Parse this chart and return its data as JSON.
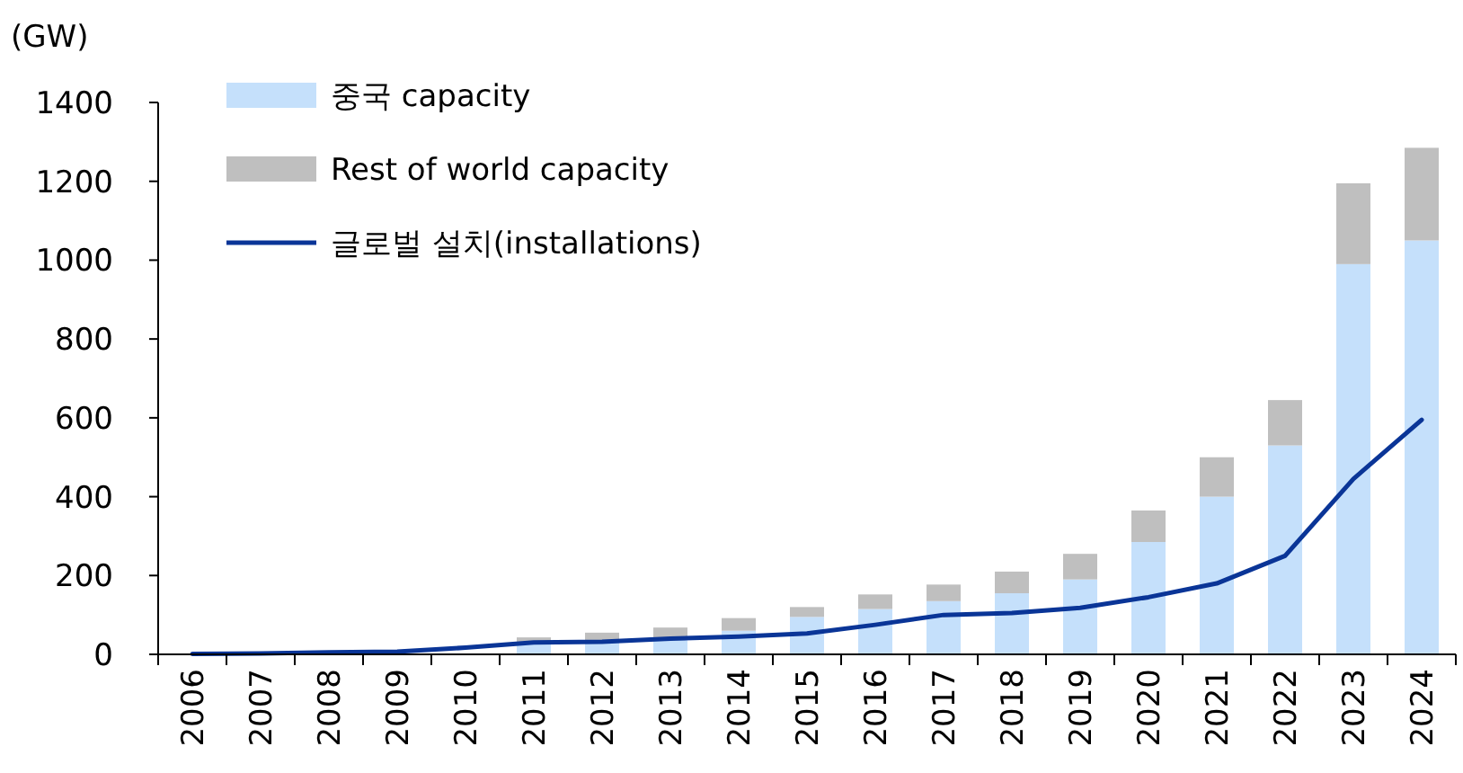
{
  "chart_data": {
    "type": "bar",
    "stacked": true,
    "ylabel": "(GW)",
    "legend": "top left",
    "categories": [
      "2006",
      "2007",
      "2008",
      "2009",
      "2010",
      "2011",
      "2012",
      "2013",
      "2014",
      "2015",
      "2016",
      "2017",
      "2018",
      "2019",
      "2020",
      "2021",
      "2022",
      "2023",
      "2024"
    ],
    "ylim": [
      0,
      1400
    ],
    "yticks": [
      0,
      200,
      400,
      600,
      800,
      1000,
      1200,
      1400
    ],
    "series": [
      {
        "name": "중국 capacity",
        "color": "#c5e0fb",
        "values": [
          null,
          null,
          null,
          null,
          null,
          25,
          30,
          42,
          60,
          95,
          115,
          135,
          155,
          190,
          285,
          400,
          530,
          990,
          1050
        ]
      },
      {
        "name": "Rest of world capacity",
        "color": "#bfbfbf",
        "values": [
          null,
          null,
          null,
          null,
          null,
          18,
          25,
          26,
          32,
          25,
          37,
          42,
          55,
          65,
          80,
          100,
          115,
          205,
          235
        ]
      },
      {
        "name": "글로벌 설치(installations)",
        "type": "line",
        "color": "#0a3597",
        "values": [
          1,
          2,
          5,
          7,
          17,
          30,
          32,
          40,
          45,
          53,
          75,
          100,
          105,
          118,
          145,
          180,
          250,
          445,
          595
        ]
      }
    ]
  }
}
